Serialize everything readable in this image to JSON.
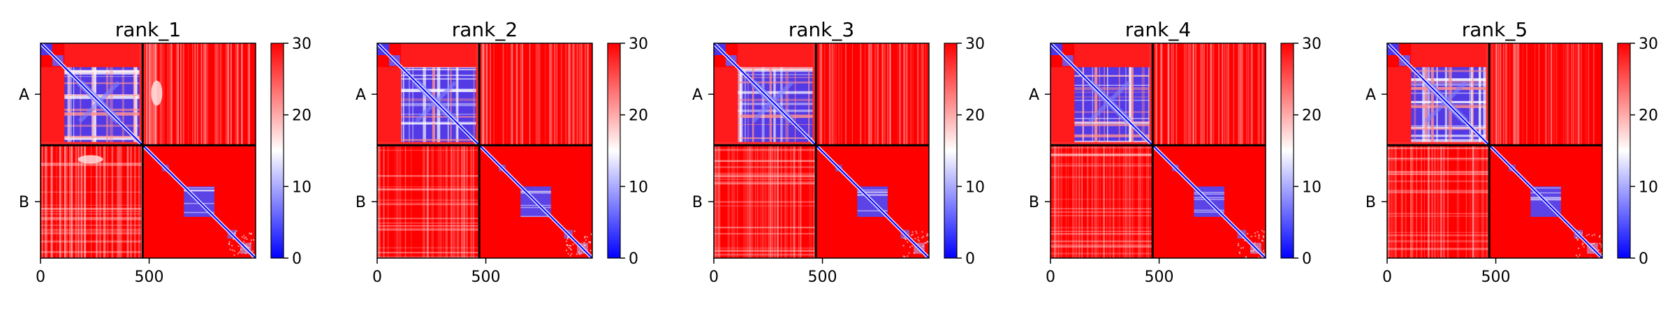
{
  "chart_data": {
    "type": "heatmap",
    "description_source": "five predicted aligned error matrices, chains A and B",
    "chain_labels": [
      "A",
      "B"
    ],
    "chain_boundary": 470,
    "xlim": [
      0,
      990
    ],
    "x_ticks": [
      0,
      500
    ],
    "colorbar": {
      "min": 0,
      "max": 30,
      "ticks": [
        0,
        10,
        20,
        30
      ],
      "colormap": "bwr"
    },
    "colors": {
      "low": "#0000ff",
      "mid": "#ffffff",
      "high": "#ff0000"
    },
    "panels": [
      {
        "title": "rank_1"
      },
      {
        "title": "rank_2"
      },
      {
        "title": "rank_3"
      },
      {
        "title": "rank_4"
      },
      {
        "title": "rank_5"
      }
    ]
  }
}
